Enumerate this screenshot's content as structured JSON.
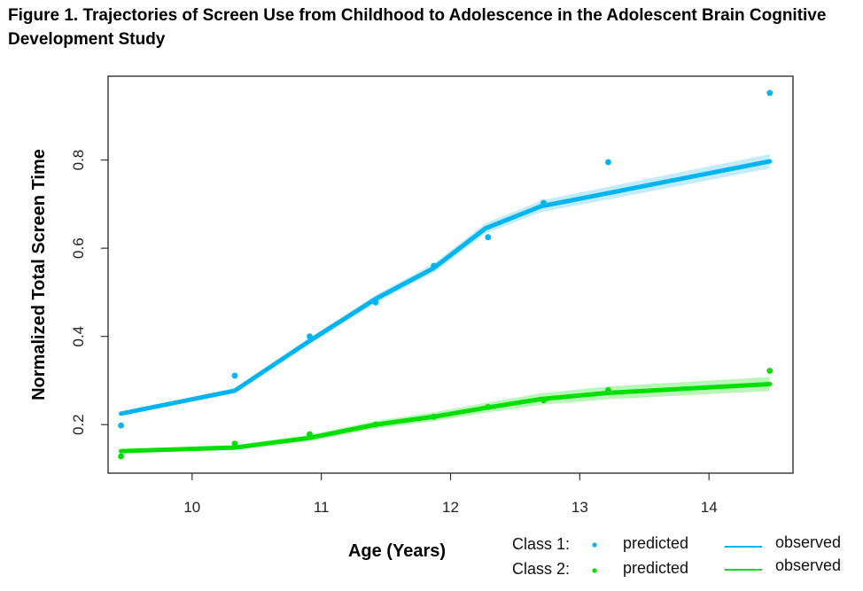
{
  "figure_title": "Figure 1. Trajectories of Screen Use from Childhood to Adolescence in the Adolescent Brain Cognitive Development Study",
  "chart_data": {
    "type": "line",
    "xlabel": "Age (Years)",
    "ylabel": "Normalized Total Screen Time",
    "xlim": [
      9.35,
      14.65
    ],
    "ylim": [
      0.09,
      0.99
    ],
    "x_ticks": [
      "10",
      "11",
      "12",
      "13",
      "14"
    ],
    "y_ticks": [
      "0.2",
      "0.4",
      "0.6",
      "0.8"
    ],
    "grid": false,
    "legend_placement": "bottom-right",
    "legend": {
      "class1_label": "Class 1:",
      "class2_label": "Class 2:",
      "predicted_label": "predicted",
      "observed_label": "observed"
    },
    "series": [
      {
        "name": "Class 1",
        "color": "#00b4f0",
        "band_color": "#a8e4f7",
        "observed": {
          "x": [
            9.45,
            10.33,
            10.91,
            11.42,
            11.87,
            12.27,
            12.7,
            13.22,
            14.47
          ],
          "y": [
            0.225,
            0.277,
            0.39,
            0.485,
            0.555,
            0.645,
            0.695,
            0.725,
            0.797
          ]
        },
        "predicted": {
          "x": [
            9.45,
            10.33,
            10.91,
            11.42,
            11.87,
            12.29,
            12.72,
            13.22,
            14.47
          ],
          "y": [
            0.198,
            0.311,
            0.4,
            0.477,
            0.56,
            0.625,
            0.703,
            0.795,
            0.952
          ]
        }
      },
      {
        "name": "Class 2",
        "color": "#00e000",
        "band_color": "#9cf29c",
        "observed": {
          "x": [
            9.45,
            10.33,
            10.91,
            11.42,
            11.87,
            12.27,
            12.7,
            13.22,
            14.47
          ],
          "y": [
            0.14,
            0.148,
            0.17,
            0.2,
            0.218,
            0.238,
            0.258,
            0.272,
            0.292
          ]
        },
        "predicted": {
          "x": [
            9.45,
            10.33,
            10.91,
            11.42,
            11.87,
            12.29,
            12.72,
            13.22,
            14.47
          ],
          "y": [
            0.128,
            0.157,
            0.178,
            0.2,
            0.218,
            0.24,
            0.255,
            0.278,
            0.322
          ]
        }
      }
    ]
  }
}
